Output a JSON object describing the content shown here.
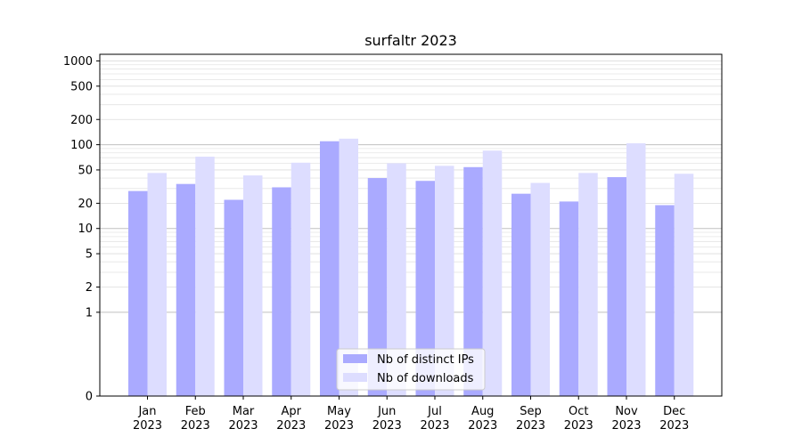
{
  "chart_data": {
    "type": "bar",
    "title": "surfaltr 2023",
    "xlabel": "",
    "ylabel": "",
    "yscale": "symlog",
    "ylim": [
      0,
      1200
    ],
    "yticks": [
      0,
      1,
      2,
      5,
      10,
      20,
      50,
      100,
      200,
      500,
      1000
    ],
    "ytick_labels": [
      "0",
      "1",
      "2",
      "5",
      "10",
      "20",
      "50",
      "100",
      "200",
      "500",
      "1000"
    ],
    "categories": [
      [
        "Jan",
        "2023"
      ],
      [
        "Feb",
        "2023"
      ],
      [
        "Mar",
        "2023"
      ],
      [
        "Apr",
        "2023"
      ],
      [
        "May",
        "2023"
      ],
      [
        "Jun",
        "2023"
      ],
      [
        "Jul",
        "2023"
      ],
      [
        "Aug",
        "2023"
      ],
      [
        "Sep",
        "2023"
      ],
      [
        "Oct",
        "2023"
      ],
      [
        "Nov",
        "2023"
      ],
      [
        "Dec",
        "2023"
      ]
    ],
    "series": [
      {
        "name": "Nb of distinct IPs",
        "color": "#aaaaff",
        "values": [
          28,
          34,
          22,
          31,
          110,
          40,
          37,
          54,
          26,
          21,
          41,
          19
        ]
      },
      {
        "name": "Nb of downloads",
        "color": "#ddddff",
        "values": [
          46,
          72,
          43,
          61,
          118,
          60,
          56,
          85,
          35,
          46,
          104,
          45
        ]
      }
    ],
    "legend_position": "lower-center",
    "grid": true
  }
}
